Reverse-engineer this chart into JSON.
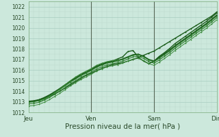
{
  "xlabel": "Pression niveau de la mer( hPa )",
  "xlim": [
    0,
    72
  ],
  "ylim": [
    1012,
    1022.5
  ],
  "yticks": [
    1012,
    1013,
    1014,
    1015,
    1016,
    1017,
    1018,
    1019,
    1020,
    1021,
    1022
  ],
  "xtick_positions": [
    0,
    24,
    48,
    72
  ],
  "xtick_labels": [
    "Jeu",
    "Ven",
    "Sam",
    "Dim"
  ],
  "background_color": "#cce8dc",
  "grid_color_major": "#a8cdc0",
  "grid_color_minor": "#bcd8cc",
  "lines": [
    {
      "x": [
        0,
        2,
        4,
        6,
        8,
        10,
        12,
        14,
        16,
        18,
        20,
        22,
        24,
        26,
        28,
        30,
        32,
        34,
        36,
        38,
        40,
        42,
        44,
        46,
        48,
        50,
        52,
        54,
        56,
        58,
        60,
        62,
        64,
        66,
        68,
        70,
        72
      ],
      "y": [
        1013.0,
        1013.05,
        1013.15,
        1013.3,
        1013.5,
        1013.75,
        1014.0,
        1014.3,
        1014.6,
        1014.9,
        1015.2,
        1015.5,
        1015.7,
        1015.95,
        1016.15,
        1016.35,
        1016.5,
        1016.6,
        1016.7,
        1016.85,
        1017.0,
        1017.2,
        1017.4,
        1017.6,
        1017.8,
        1018.1,
        1018.4,
        1018.7,
        1019.0,
        1019.3,
        1019.6,
        1019.9,
        1020.2,
        1020.5,
        1020.8,
        1021.1,
        1021.5
      ],
      "lw": 1.0,
      "color": "#1a5c1a"
    },
    {
      "x": [
        0,
        2,
        4,
        6,
        8,
        10,
        12,
        14,
        16,
        18,
        20,
        22,
        24,
        26,
        28,
        30,
        32,
        34,
        36,
        38,
        40,
        42,
        44,
        46,
        48,
        50,
        52,
        54,
        56,
        58,
        60,
        62,
        64,
        66,
        68,
        70,
        72
      ],
      "y": [
        1013.05,
        1013.1,
        1013.2,
        1013.4,
        1013.65,
        1013.95,
        1014.25,
        1014.6,
        1014.95,
        1015.25,
        1015.55,
        1015.8,
        1016.05,
        1016.35,
        1016.55,
        1016.75,
        1016.85,
        1017.05,
        1017.25,
        1017.75,
        1017.85,
        1017.2,
        1016.85,
        1016.6,
        1016.85,
        1017.3,
        1017.65,
        1018.05,
        1018.5,
        1018.85,
        1019.2,
        1019.55,
        1019.9,
        1020.25,
        1020.6,
        1021.0,
        1021.4
      ],
      "lw": 1.0,
      "color": "#1a5c1a"
    },
    {
      "x": [
        0,
        2,
        4,
        6,
        8,
        10,
        12,
        14,
        16,
        18,
        20,
        22,
        24,
        26,
        28,
        30,
        32,
        34,
        36,
        38,
        40,
        42,
        44,
        46,
        48,
        50,
        52,
        54,
        56,
        58,
        60,
        62,
        64,
        66,
        68,
        70,
        72
      ],
      "y": [
        1013.0,
        1013.05,
        1013.15,
        1013.35,
        1013.6,
        1013.9,
        1014.25,
        1014.6,
        1014.95,
        1015.25,
        1015.55,
        1015.8,
        1016.05,
        1016.35,
        1016.55,
        1016.7,
        1016.8,
        1016.9,
        1017.05,
        1017.25,
        1017.45,
        1017.5,
        1017.3,
        1017.0,
        1016.85,
        1017.2,
        1017.55,
        1017.9,
        1018.3,
        1018.65,
        1019.0,
        1019.35,
        1019.7,
        1020.05,
        1020.4,
        1020.8,
        1021.2
      ],
      "lw": 1.2,
      "color": "#1a5c1a"
    },
    {
      "x": [
        0,
        2,
        4,
        6,
        8,
        10,
        12,
        14,
        16,
        18,
        20,
        22,
        24,
        26,
        28,
        30,
        32,
        34,
        36,
        38,
        40,
        42,
        44,
        46,
        48,
        50,
        52,
        54,
        56,
        58,
        60,
        62,
        64,
        66,
        68,
        70,
        72
      ],
      "y": [
        1012.95,
        1013.0,
        1013.1,
        1013.3,
        1013.55,
        1013.85,
        1014.15,
        1014.5,
        1014.85,
        1015.15,
        1015.45,
        1015.7,
        1015.95,
        1016.25,
        1016.45,
        1016.65,
        1016.75,
        1016.85,
        1017.0,
        1017.2,
        1017.4,
        1017.45,
        1017.25,
        1016.95,
        1016.8,
        1017.1,
        1017.45,
        1017.8,
        1018.2,
        1018.55,
        1018.9,
        1019.25,
        1019.6,
        1019.95,
        1020.3,
        1020.7,
        1021.1
      ],
      "lw": 0.8,
      "color": "#2a7a2a"
    },
    {
      "x": [
        0,
        2,
        4,
        6,
        8,
        10,
        12,
        14,
        16,
        18,
        20,
        22,
        24,
        26,
        28,
        30,
        32,
        34,
        36,
        38,
        40,
        42,
        44,
        46,
        48,
        50,
        52,
        54,
        56,
        58,
        60,
        62,
        64,
        66,
        68,
        70,
        72
      ],
      "y": [
        1012.8,
        1012.85,
        1012.95,
        1013.15,
        1013.4,
        1013.7,
        1014.0,
        1014.35,
        1014.7,
        1015.0,
        1015.3,
        1015.55,
        1015.8,
        1016.1,
        1016.3,
        1016.5,
        1016.6,
        1016.7,
        1016.85,
        1017.05,
        1017.25,
        1017.3,
        1017.1,
        1016.8,
        1016.65,
        1016.95,
        1017.3,
        1017.65,
        1018.05,
        1018.4,
        1018.75,
        1019.1,
        1019.45,
        1019.8,
        1020.15,
        1020.55,
        1020.95
      ],
      "lw": 0.8,
      "color": "#2a7a2a"
    },
    {
      "x": [
        0,
        2,
        4,
        6,
        8,
        10,
        12,
        14,
        16,
        18,
        20,
        22,
        24,
        26,
        28,
        30,
        32,
        34,
        36,
        38,
        40,
        42,
        44,
        46,
        48,
        50,
        52,
        54,
        56,
        58,
        60,
        62,
        64,
        66,
        68,
        70,
        72
      ],
      "y": [
        1012.6,
        1012.65,
        1012.75,
        1012.95,
        1013.2,
        1013.5,
        1013.8,
        1014.15,
        1014.5,
        1014.8,
        1015.1,
        1015.35,
        1015.6,
        1015.9,
        1016.1,
        1016.3,
        1016.4,
        1016.5,
        1016.65,
        1016.85,
        1017.05,
        1017.1,
        1016.9,
        1016.6,
        1016.45,
        1016.75,
        1017.1,
        1017.45,
        1017.85,
        1018.2,
        1018.55,
        1018.9,
        1019.25,
        1019.6,
        1019.95,
        1020.35,
        1020.75
      ],
      "lw": 0.7,
      "color": "#3a8a3a"
    },
    {
      "x": [
        4,
        6,
        8,
        10,
        12,
        14,
        16,
        18,
        20,
        22,
        24,
        26,
        28,
        30,
        32,
        34
      ],
      "y": [
        1013.0,
        1013.2,
        1013.5,
        1013.85,
        1014.2,
        1014.6,
        1015.0,
        1015.35,
        1015.65,
        1015.9,
        1016.15,
        1016.45,
        1016.65,
        1016.8,
        1016.9,
        1016.95
      ],
      "lw": 0.7,
      "color": "#3a8a3a"
    }
  ],
  "vline_positions": [
    24,
    48
  ],
  "vline_color": "#556655",
  "ytick_fontsize": 5.5,
  "xtick_fontsize": 6.5,
  "xlabel_fontsize": 7.5
}
